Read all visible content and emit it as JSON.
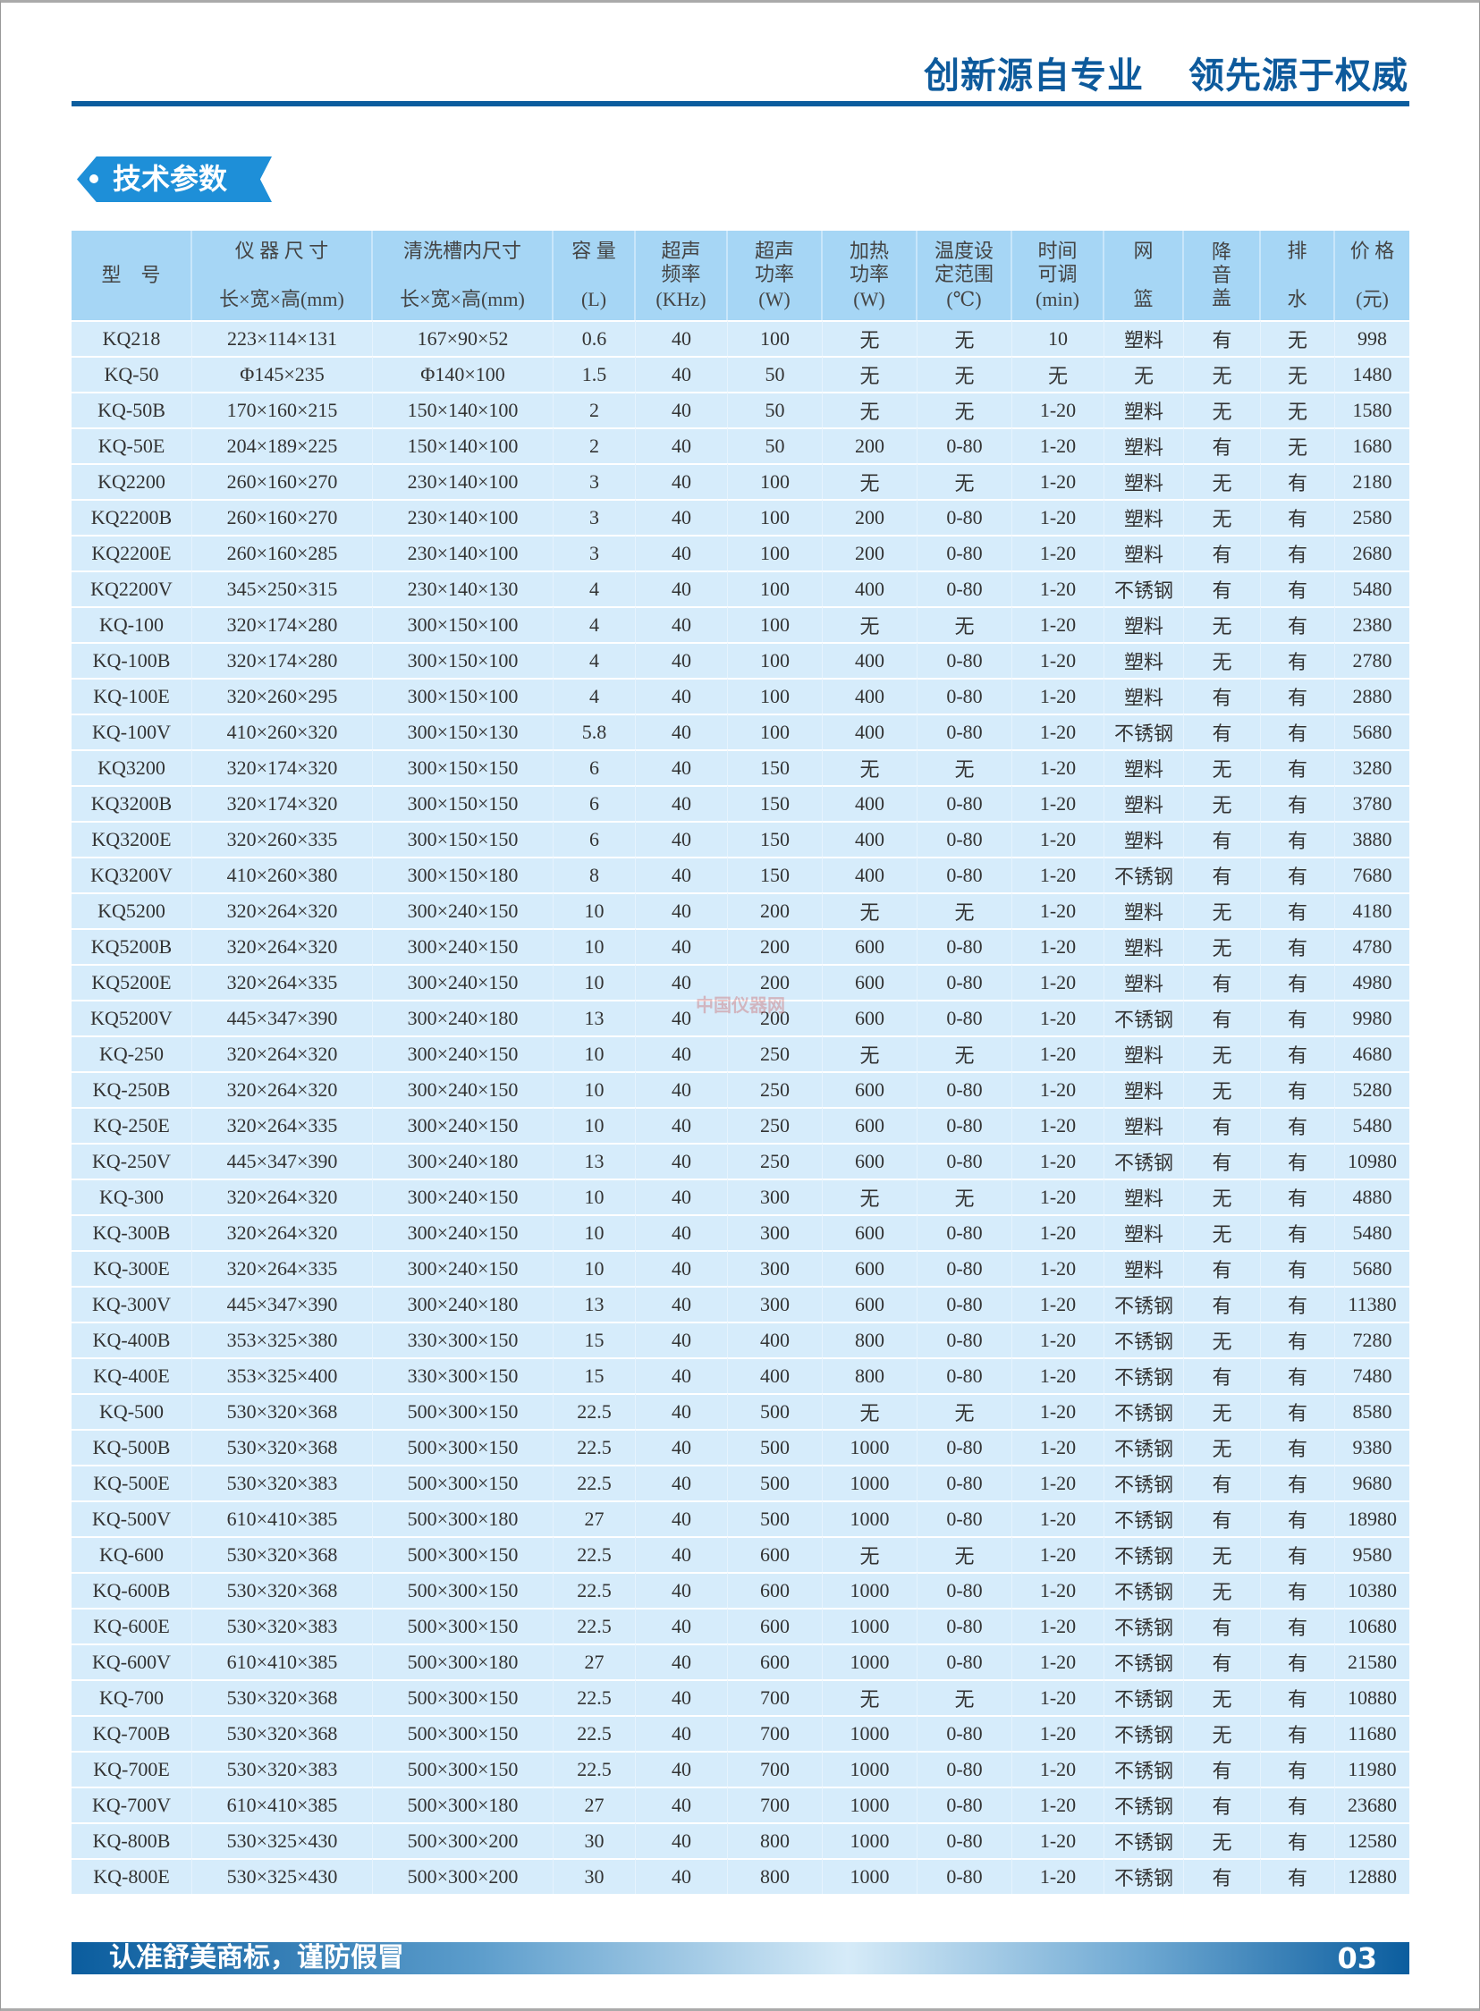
{
  "header": {
    "slogan_left": "创新源自专业",
    "slogan_right": "领先源于权威"
  },
  "section": {
    "title": "技术参数"
  },
  "table": {
    "columns": [
      {
        "top": "型　号",
        "bottom": ""
      },
      {
        "top": "仪 器 尺 寸",
        "bottom": "长×宽×高(mm)"
      },
      {
        "top": "清洗槽内尺寸",
        "bottom": "长×宽×高(mm)"
      },
      {
        "top": "容 量",
        "bottom": "(L)"
      },
      {
        "top": "超声\n频率",
        "bottom": "(KHz)"
      },
      {
        "top": "超声\n功率",
        "bottom": "(W)"
      },
      {
        "top": "加热\n功率",
        "bottom": "(W)"
      },
      {
        "top": "温度设\n定范围",
        "bottom": "(℃)"
      },
      {
        "top": "时间\n可调",
        "bottom": "(min)"
      },
      {
        "top": "网",
        "bottom": "篮"
      },
      {
        "top": "降\n音\n盖",
        "bottom": ""
      },
      {
        "top": "排",
        "bottom": "水"
      },
      {
        "top": "价 格",
        "bottom": "(元)"
      }
    ],
    "rows": [
      [
        "KQ218",
        "223×114×131",
        "167×90×52",
        "0.6",
        "40",
        "100",
        "无",
        "无",
        "10",
        "塑料",
        "有",
        "无",
        "998"
      ],
      [
        "KQ-50",
        "Φ145×235",
        "Φ140×100",
        "1.5",
        "40",
        "50",
        "无",
        "无",
        "无",
        "无",
        "无",
        "无",
        "1480"
      ],
      [
        "KQ-50B",
        "170×160×215",
        "150×140×100",
        "2",
        "40",
        "50",
        "无",
        "无",
        "1-20",
        "塑料",
        "无",
        "无",
        "1580"
      ],
      [
        "KQ-50E",
        "204×189×225",
        "150×140×100",
        "2",
        "40",
        "50",
        "200",
        "0-80",
        "1-20",
        "塑料",
        "有",
        "无",
        "1680"
      ],
      [
        "KQ2200",
        "260×160×270",
        "230×140×100",
        "3",
        "40",
        "100",
        "无",
        "无",
        "1-20",
        "塑料",
        "无",
        "有",
        "2180"
      ],
      [
        "KQ2200B",
        "260×160×270",
        "230×140×100",
        "3",
        "40",
        "100",
        "200",
        "0-80",
        "1-20",
        "塑料",
        "无",
        "有",
        "2580"
      ],
      [
        "KQ2200E",
        "260×160×285",
        "230×140×100",
        "3",
        "40",
        "100",
        "200",
        "0-80",
        "1-20",
        "塑料",
        "有",
        "有",
        "2680"
      ],
      [
        "KQ2200V",
        "345×250×315",
        "230×140×130",
        "4",
        "40",
        "100",
        "400",
        "0-80",
        "1-20",
        "不锈钢",
        "有",
        "有",
        "5480"
      ],
      [
        "KQ-100",
        "320×174×280",
        "300×150×100",
        "4",
        "40",
        "100",
        "无",
        "无",
        "1-20",
        "塑料",
        "无",
        "有",
        "2380"
      ],
      [
        "KQ-100B",
        "320×174×280",
        "300×150×100",
        "4",
        "40",
        "100",
        "400",
        "0-80",
        "1-20",
        "塑料",
        "无",
        "有",
        "2780"
      ],
      [
        "KQ-100E",
        "320×260×295",
        "300×150×100",
        "4",
        "40",
        "100",
        "400",
        "0-80",
        "1-20",
        "塑料",
        "有",
        "有",
        "2880"
      ],
      [
        "KQ-100V",
        "410×260×320",
        "300×150×130",
        "5.8",
        "40",
        "100",
        "400",
        "0-80",
        "1-20",
        "不锈钢",
        "有",
        "有",
        "5680"
      ],
      [
        "KQ3200",
        "320×174×320",
        "300×150×150",
        "6",
        "40",
        "150",
        "无",
        "无",
        "1-20",
        "塑料",
        "无",
        "有",
        "3280"
      ],
      [
        "KQ3200B",
        "320×174×320",
        "300×150×150",
        "6",
        "40",
        "150",
        "400",
        "0-80",
        "1-20",
        "塑料",
        "无",
        "有",
        "3780"
      ],
      [
        "KQ3200E",
        "320×260×335",
        "300×150×150",
        "6",
        "40",
        "150",
        "400",
        "0-80",
        "1-20",
        "塑料",
        "有",
        "有",
        "3880"
      ],
      [
        "KQ3200V",
        "410×260×380",
        "300×150×180",
        "8",
        "40",
        "150",
        "400",
        "0-80",
        "1-20",
        "不锈钢",
        "有",
        "有",
        "7680"
      ],
      [
        "KQ5200",
        "320×264×320",
        "300×240×150",
        "10",
        "40",
        "200",
        "无",
        "无",
        "1-20",
        "塑料",
        "无",
        "有",
        "4180"
      ],
      [
        "KQ5200B",
        "320×264×320",
        "300×240×150",
        "10",
        "40",
        "200",
        "600",
        "0-80",
        "1-20",
        "塑料",
        "无",
        "有",
        "4780"
      ],
      [
        "KQ5200E",
        "320×264×335",
        "300×240×150",
        "10",
        "40",
        "200",
        "600",
        "0-80",
        "1-20",
        "塑料",
        "有",
        "有",
        "4980"
      ],
      [
        "KQ5200V",
        "445×347×390",
        "300×240×180",
        "13",
        "40",
        "200",
        "600",
        "0-80",
        "1-20",
        "不锈钢",
        "有",
        "有",
        "9980"
      ],
      [
        "KQ-250",
        "320×264×320",
        "300×240×150",
        "10",
        "40",
        "250",
        "无",
        "无",
        "1-20",
        "塑料",
        "无",
        "有",
        "4680"
      ],
      [
        "KQ-250B",
        "320×264×320",
        "300×240×150",
        "10",
        "40",
        "250",
        "600",
        "0-80",
        "1-20",
        "塑料",
        "无",
        "有",
        "5280"
      ],
      [
        "KQ-250E",
        "320×264×335",
        "300×240×150",
        "10",
        "40",
        "250",
        "600",
        "0-80",
        "1-20",
        "塑料",
        "有",
        "有",
        "5480"
      ],
      [
        "KQ-250V",
        "445×347×390",
        "300×240×180",
        "13",
        "40",
        "250",
        "600",
        "0-80",
        "1-20",
        "不锈钢",
        "有",
        "有",
        "10980"
      ],
      [
        "KQ-300",
        "320×264×320",
        "300×240×150",
        "10",
        "40",
        "300",
        "无",
        "无",
        "1-20",
        "塑料",
        "无",
        "有",
        "4880"
      ],
      [
        "KQ-300B",
        "320×264×320",
        "300×240×150",
        "10",
        "40",
        "300",
        "600",
        "0-80",
        "1-20",
        "塑料",
        "无",
        "有",
        "5480"
      ],
      [
        "KQ-300E",
        "320×264×335",
        "300×240×150",
        "10",
        "40",
        "300",
        "600",
        "0-80",
        "1-20",
        "塑料",
        "有",
        "有",
        "5680"
      ],
      [
        "KQ-300V",
        "445×347×390",
        "300×240×180",
        "13",
        "40",
        "300",
        "600",
        "0-80",
        "1-20",
        "不锈钢",
        "有",
        "有",
        "11380"
      ],
      [
        "KQ-400B",
        "353×325×380",
        "330×300×150",
        "15",
        "40",
        "400",
        "800",
        "0-80",
        "1-20",
        "不锈钢",
        "无",
        "有",
        "7280"
      ],
      [
        "KQ-400E",
        "353×325×400",
        "330×300×150",
        "15",
        "40",
        "400",
        "800",
        "0-80",
        "1-20",
        "不锈钢",
        "有",
        "有",
        "7480"
      ],
      [
        "KQ-500",
        "530×320×368",
        "500×300×150",
        "22.5",
        "40",
        "500",
        "无",
        "无",
        "1-20",
        "不锈钢",
        "无",
        "有",
        "8580"
      ],
      [
        "KQ-500B",
        "530×320×368",
        "500×300×150",
        "22.5",
        "40",
        "500",
        "1000",
        "0-80",
        "1-20",
        "不锈钢",
        "无",
        "有",
        "9380"
      ],
      [
        "KQ-500E",
        "530×320×383",
        "500×300×150",
        "22.5",
        "40",
        "500",
        "1000",
        "0-80",
        "1-20",
        "不锈钢",
        "有",
        "有",
        "9680"
      ],
      [
        "KQ-500V",
        "610×410×385",
        "500×300×180",
        "27",
        "40",
        "500",
        "1000",
        "0-80",
        "1-20",
        "不锈钢",
        "有",
        "有",
        "18980"
      ],
      [
        "KQ-600",
        "530×320×368",
        "500×300×150",
        "22.5",
        "40",
        "600",
        "无",
        "无",
        "1-20",
        "不锈钢",
        "无",
        "有",
        "9580"
      ],
      [
        "KQ-600B",
        "530×320×368",
        "500×300×150",
        "22.5",
        "40",
        "600",
        "1000",
        "0-80",
        "1-20",
        "不锈钢",
        "无",
        "有",
        "10380"
      ],
      [
        "KQ-600E",
        "530×320×383",
        "500×300×150",
        "22.5",
        "40",
        "600",
        "1000",
        "0-80",
        "1-20",
        "不锈钢",
        "有",
        "有",
        "10680"
      ],
      [
        "KQ-600V",
        "610×410×385",
        "500×300×180",
        "27",
        "40",
        "600",
        "1000",
        "0-80",
        "1-20",
        "不锈钢",
        "有",
        "有",
        "21580"
      ],
      [
        "KQ-700",
        "530×320×368",
        "500×300×150",
        "22.5",
        "40",
        "700",
        "无",
        "无",
        "1-20",
        "不锈钢",
        "无",
        "有",
        "10880"
      ],
      [
        "KQ-700B",
        "530×320×368",
        "500×300×150",
        "22.5",
        "40",
        "700",
        "1000",
        "0-80",
        "1-20",
        "不锈钢",
        "无",
        "有",
        "11680"
      ],
      [
        "KQ-700E",
        "530×320×383",
        "500×300×150",
        "22.5",
        "40",
        "700",
        "1000",
        "0-80",
        "1-20",
        "不锈钢",
        "有",
        "有",
        "11980"
      ],
      [
        "KQ-700V",
        "610×410×385",
        "500×300×180",
        "27",
        "40",
        "700",
        "1000",
        "0-80",
        "1-20",
        "不锈钢",
        "有",
        "有",
        "23680"
      ],
      [
        "KQ-800B",
        "530×325×430",
        "500×300×200",
        "30",
        "40",
        "800",
        "1000",
        "0-80",
        "1-20",
        "不锈钢",
        "无",
        "有",
        "12580"
      ],
      [
        "KQ-800E",
        "530×325×430",
        "500×300×200",
        "30",
        "40",
        "800",
        "1000",
        "0-80",
        "1-20",
        "不锈钢",
        "有",
        "有",
        "12880"
      ]
    ]
  },
  "watermark": "中国仪器网",
  "footer": {
    "slogan": "认准舒美商标，谨防假冒",
    "page_number": "03"
  },
  "colors": {
    "brand_blue": "#0b5d9e",
    "badge_blue": "#1e8fd8",
    "header_cell": "#a6d6f5",
    "body_cell": "#d6ecfb"
  }
}
